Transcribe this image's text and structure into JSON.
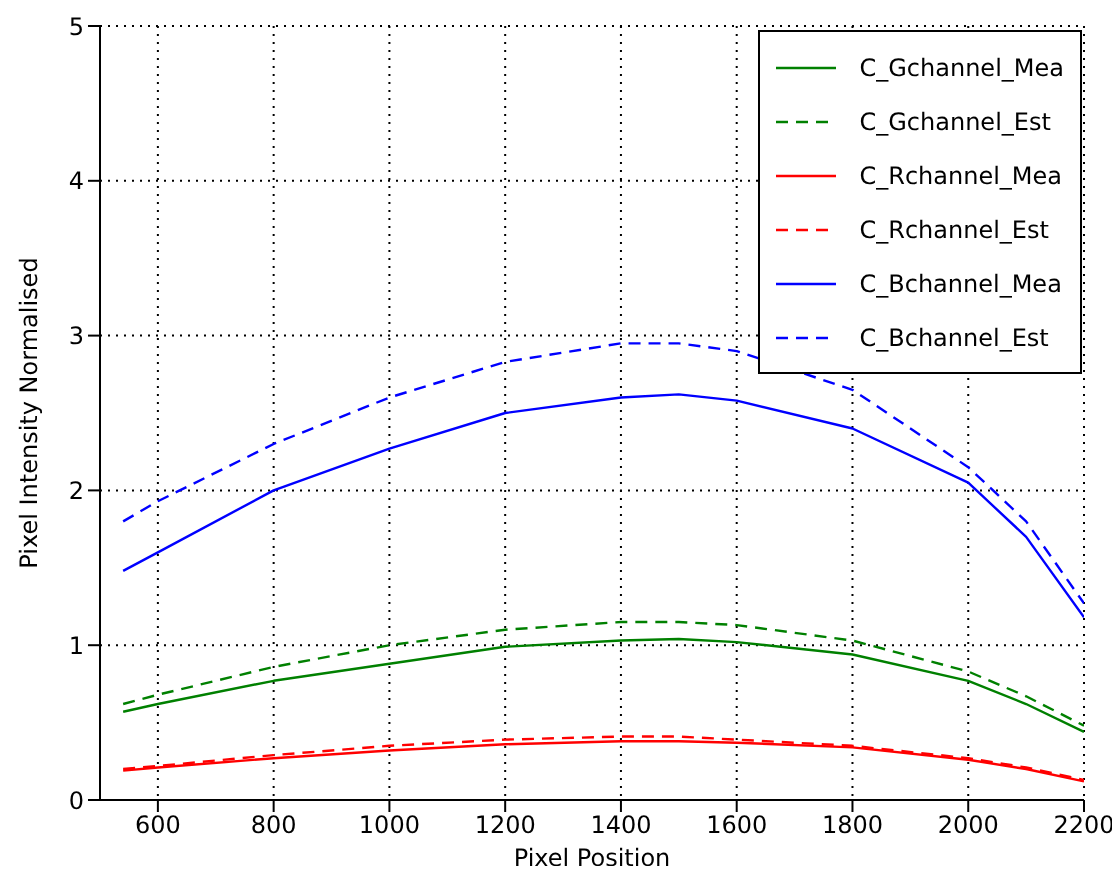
{
  "chart_data": {
    "type": "line",
    "xlabel": "Pixel Position",
    "ylabel": "Pixel Intensity Normalised",
    "x": [
      540,
      600,
      800,
      1000,
      1200,
      1400,
      1500,
      1600,
      1800,
      2000,
      2100,
      2200
    ],
    "series": [
      {
        "name": "C_Gchannel_Mea",
        "color": "#008000",
        "line_style": "solid",
        "values": [
          0.57,
          0.62,
          0.77,
          0.88,
          0.99,
          1.03,
          1.04,
          1.02,
          0.94,
          0.77,
          0.62,
          0.44
        ]
      },
      {
        "name": "C_Gchannel_Est",
        "color": "#008000",
        "line_style": "dashed",
        "values": [
          0.62,
          0.68,
          0.86,
          1.0,
          1.1,
          1.15,
          1.15,
          1.13,
          1.03,
          0.83,
          0.67,
          0.48
        ]
      },
      {
        "name": "C_Rchannel_Mea",
        "color": "#ff0000",
        "line_style": "solid",
        "values": [
          0.19,
          0.21,
          0.27,
          0.32,
          0.36,
          0.38,
          0.38,
          0.37,
          0.34,
          0.26,
          0.2,
          0.12
        ]
      },
      {
        "name": "C_Rchannel_Est",
        "color": "#ff0000",
        "line_style": "dashed",
        "values": [
          0.2,
          0.22,
          0.29,
          0.35,
          0.39,
          0.41,
          0.41,
          0.39,
          0.35,
          0.27,
          0.21,
          0.13
        ]
      },
      {
        "name": "C_Bchannel_Mea",
        "color": "#0000ff",
        "line_style": "solid",
        "values": [
          1.48,
          1.6,
          2.0,
          2.27,
          2.5,
          2.6,
          2.62,
          2.58,
          2.4,
          2.05,
          1.7,
          1.18
        ]
      },
      {
        "name": "C_Bchannel_Est",
        "color": "#0000ff",
        "line_style": "dashed",
        "values": [
          1.8,
          1.93,
          2.3,
          2.6,
          2.83,
          2.95,
          2.95,
          2.9,
          2.65,
          2.15,
          1.8,
          1.27
        ]
      }
    ],
    "xlim": [
      500,
      2200
    ],
    "xticks": [
      600,
      800,
      1000,
      1200,
      1400,
      1600,
      1800,
      2000,
      2200
    ],
    "ylim": [
      0,
      5
    ],
    "yticks": [
      0,
      1,
      2,
      3,
      4,
      5
    ],
    "grid": true,
    "legend": "top right",
    "marker": "none"
  }
}
